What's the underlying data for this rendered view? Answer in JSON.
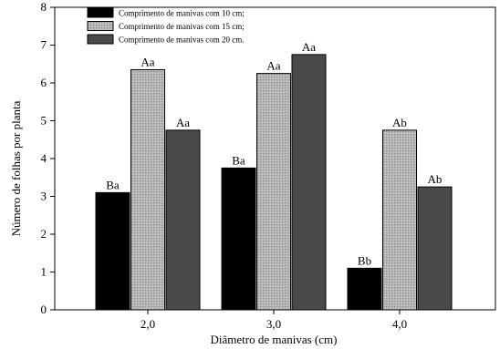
{
  "chart_data": {
    "type": "bar",
    "title": "",
    "xlabel": "Diâmetro de manivas (cm)",
    "ylabel": "Número de folhas por planta",
    "ylim": [
      0,
      8
    ],
    "yticks": [
      "0",
      "1",
      "2",
      "3",
      "4",
      "5",
      "6",
      "7",
      "8"
    ],
    "categories": [
      "2,0",
      "3,0",
      "4,0"
    ],
    "legend_position": "top-left",
    "grid": false,
    "series": [
      {
        "name": "Comprimento de manivas com 10 cm;",
        "color": "#000000",
        "values": [
          3.1,
          3.75,
          1.1
        ],
        "labels": [
          "Ba",
          "Ba",
          "Bb"
        ]
      },
      {
        "name": "Comprimento de manivas com 15 cm;",
        "color": "#a8a8a8",
        "values": [
          6.35,
          6.25,
          4.75
        ],
        "labels": [
          "Aa",
          "Aa",
          "Ab"
        ]
      },
      {
        "name": "Comprimento de manivas com 20 cm.",
        "color": "#4a4a4a",
        "values": [
          4.75,
          6.75,
          3.25
        ],
        "labels": [
          "Aa",
          "Aa",
          "Ab"
        ]
      }
    ]
  }
}
